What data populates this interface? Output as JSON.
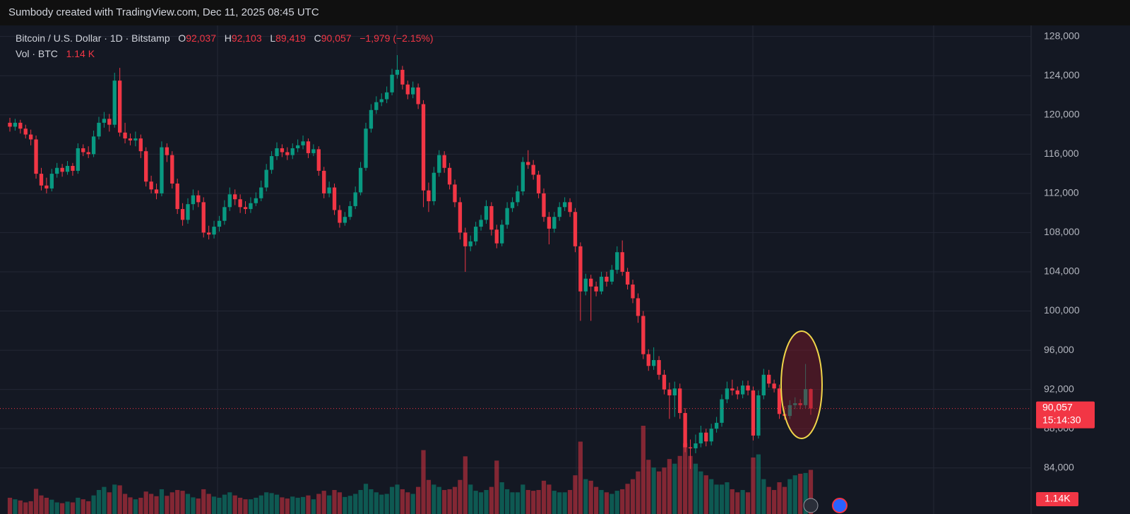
{
  "header": {
    "text": "Sumbody created with TradingView.com, Dec 11, 2025 08:45 UTC"
  },
  "legend": {
    "symbol": "Bitcoin / U.S. Dollar · 1D · Bitstamp",
    "o_key": "O",
    "o": "92,037",
    "h_key": "H",
    "h": "92,103",
    "l_key": "L",
    "l": "89,419",
    "c_key": "C",
    "c": "90,057",
    "change": "−1,979 (−2.15%)",
    "vol_key": "Vol · BTC",
    "vol": "1.14 K"
  },
  "chart_data": {
    "type": "candlestick",
    "up_color": "#089981",
    "down_color": "#f23645",
    "ylim": [
      79300,
      129200
    ],
    "yticks": [
      {
        "value": 84000,
        "label": "84,000"
      },
      {
        "value": 88000,
        "label": "88,000"
      },
      {
        "value": 92000,
        "label": "92,000"
      },
      {
        "value": 96000,
        "label": "96,000"
      },
      {
        "value": 100000,
        "label": "100,000"
      },
      {
        "value": 104000,
        "label": "104,000"
      },
      {
        "value": 108000,
        "label": "108,000"
      },
      {
        "value": 112000,
        "label": "112,000"
      },
      {
        "value": 116000,
        "label": "116,000"
      },
      {
        "value": 120000,
        "label": "120,000"
      },
      {
        "value": 124000,
        "label": "124,000"
      },
      {
        "value": 128000,
        "label": "128,000"
      }
    ],
    "grid": true,
    "last_price_label": "90,057",
    "countdown": "15:14:30",
    "last_volume_label": "1.14K",
    "candles": [
      [
        119200,
        119700,
        118300,
        118800
      ],
      [
        118800,
        119600,
        118400,
        119200
      ],
      [
        119200,
        119500,
        118100,
        118600
      ],
      [
        118600,
        119000,
        117600,
        118000
      ],
      [
        118000,
        118500,
        116900,
        117500
      ],
      [
        117500,
        117900,
        113500,
        114000
      ],
      [
        114000,
        114600,
        112300,
        112800
      ],
      [
        112800,
        113600,
        112000,
        112500
      ],
      [
        112500,
        114500,
        112200,
        114000
      ],
      [
        114000,
        115100,
        113600,
        114600
      ],
      [
        114600,
        115000,
        113700,
        114200
      ],
      [
        114200,
        115300,
        113900,
        114800
      ],
      [
        114800,
        115100,
        113800,
        114300
      ],
      [
        114300,
        117100,
        114000,
        116600
      ],
      [
        116600,
        117000,
        115800,
        116200
      ],
      [
        116200,
        116800,
        115600,
        116000
      ],
      [
        116000,
        118400,
        115700,
        117800
      ],
      [
        117800,
        119800,
        117500,
        119200
      ],
      [
        119200,
        120300,
        118700,
        119600
      ],
      [
        119600,
        120100,
        118300,
        119000
      ],
      [
        119000,
        124300,
        118700,
        123500
      ],
      [
        123500,
        124800,
        117800,
        118200
      ],
      [
        118200,
        119200,
        117100,
        117600
      ],
      [
        117600,
        118100,
        116900,
        117400
      ],
      [
        117400,
        118300,
        116800,
        117600
      ],
      [
        117600,
        118000,
        115600,
        116300
      ],
      [
        116300,
        116700,
        112700,
        113200
      ],
      [
        113200,
        113800,
        112000,
        112400
      ],
      [
        112400,
        113000,
        111400,
        112000
      ],
      [
        112000,
        117300,
        111700,
        116700
      ],
      [
        116700,
        117100,
        115200,
        115900
      ],
      [
        115900,
        116300,
        112500,
        113000
      ],
      [
        113000,
        113500,
        109900,
        110400
      ],
      [
        110400,
        111000,
        108700,
        109300
      ],
      [
        109300,
        111500,
        108900,
        110900
      ],
      [
        110900,
        112400,
        110300,
        111800
      ],
      [
        111800,
        112300,
        110600,
        111100
      ],
      [
        111100,
        111600,
        107500,
        108000
      ],
      [
        108000,
        108700,
        107300,
        107800
      ],
      [
        107800,
        109200,
        107400,
        108600
      ],
      [
        108600,
        109700,
        108100,
        109200
      ],
      [
        109200,
        111300,
        108800,
        110600
      ],
      [
        110600,
        112600,
        110200,
        111900
      ],
      [
        111900,
        112400,
        110800,
        111400
      ],
      [
        111400,
        111900,
        110000,
        110600
      ],
      [
        110600,
        111200,
        109900,
        110400
      ],
      [
        110400,
        111600,
        110000,
        111000
      ],
      [
        111000,
        112100,
        110700,
        111500
      ],
      [
        111500,
        113300,
        111200,
        112600
      ],
      [
        112600,
        115000,
        112200,
        114400
      ],
      [
        114400,
        116300,
        114000,
        115800
      ],
      [
        115800,
        117200,
        115400,
        116600
      ],
      [
        116600,
        117000,
        115700,
        116200
      ],
      [
        116200,
        116700,
        115400,
        115900
      ],
      [
        115900,
        117100,
        115500,
        116600
      ],
      [
        116600,
        117500,
        116200,
        116900
      ],
      [
        116900,
        117900,
        116500,
        117300
      ],
      [
        117300,
        117600,
        115600,
        116100
      ],
      [
        116100,
        117000,
        115800,
        116500
      ],
      [
        116500,
        116800,
        113800,
        114300
      ],
      [
        114300,
        114700,
        111500,
        112000
      ],
      [
        112000,
        113200,
        111600,
        112600
      ],
      [
        112600,
        113000,
        109800,
        110300
      ],
      [
        110300,
        110800,
        108500,
        109000
      ],
      [
        109000,
        110100,
        108700,
        109600
      ],
      [
        109600,
        111200,
        109300,
        110700
      ],
      [
        110700,
        112700,
        110400,
        112100
      ],
      [
        112100,
        115200,
        111800,
        114600
      ],
      [
        114600,
        119200,
        114300,
        118600
      ],
      [
        118600,
        121100,
        118200,
        120500
      ],
      [
        120500,
        121900,
        120100,
        121300
      ],
      [
        121300,
        122200,
        120900,
        121600
      ],
      [
        121600,
        122900,
        121200,
        122300
      ],
      [
        122300,
        124700,
        122000,
        124100
      ],
      [
        124100,
        126100,
        123700,
        124600
      ],
      [
        124600,
        125000,
        122600,
        123100
      ],
      [
        123100,
        123500,
        121600,
        122100
      ],
      [
        122100,
        123400,
        121700,
        122800
      ],
      [
        122800,
        123200,
        120600,
        121100
      ],
      [
        121100,
        121500,
        110600,
        112300
      ],
      [
        112300,
        113100,
        110100,
        111200
      ],
      [
        111200,
        114700,
        110800,
        114100
      ],
      [
        114100,
        116400,
        113700,
        115900
      ],
      [
        115900,
        116300,
        114100,
        114600
      ],
      [
        114600,
        115100,
        112400,
        112900
      ],
      [
        112900,
        113400,
        110600,
        111100
      ],
      [
        111100,
        111600,
        107300,
        108000
      ],
      [
        108000,
        108500,
        104000,
        106600
      ],
      [
        106600,
        107700,
        106100,
        107100
      ],
      [
        107100,
        109100,
        106700,
        108600
      ],
      [
        108600,
        109800,
        108200,
        109300
      ],
      [
        109300,
        111300,
        108900,
        110700
      ],
      [
        110700,
        111100,
        107700,
        108300
      ],
      [
        108300,
        108800,
        106400,
        106900
      ],
      [
        106900,
        109300,
        106600,
        108800
      ],
      [
        108800,
        111100,
        108400,
        110500
      ],
      [
        110500,
        111600,
        110100,
        111100
      ],
      [
        111100,
        112800,
        110700,
        112200
      ],
      [
        112200,
        115700,
        111800,
        115200
      ],
      [
        115200,
        116400,
        114500,
        114900
      ],
      [
        114900,
        115400,
        113400,
        113900
      ],
      [
        113900,
        114300,
        111500,
        112000
      ],
      [
        112000,
        112500,
        109100,
        109600
      ],
      [
        109600,
        110100,
        106800,
        108400
      ],
      [
        108400,
        110100,
        108000,
        109600
      ],
      [
        109600,
        111100,
        109200,
        110600
      ],
      [
        110600,
        111600,
        110200,
        111100
      ],
      [
        111100,
        111500,
        109600,
        110100
      ],
      [
        110100,
        110500,
        106000,
        106600
      ],
      [
        106600,
        107000,
        99000,
        102000
      ],
      [
        102000,
        103800,
        101600,
        103300
      ],
      [
        103300,
        103700,
        99000,
        102500
      ],
      [
        102500,
        103000,
        101500,
        102000
      ],
      [
        102000,
        104000,
        101700,
        103500
      ],
      [
        103500,
        104000,
        102500,
        103000
      ],
      [
        103000,
        104700,
        102700,
        104200
      ],
      [
        104200,
        106600,
        103800,
        106000
      ],
      [
        106000,
        107200,
        103600,
        104000
      ],
      [
        104000,
        104400,
        102200,
        102700
      ],
      [
        102700,
        103200,
        100800,
        101300
      ],
      [
        101300,
        101800,
        98800,
        99500
      ],
      [
        99500,
        100000,
        95100,
        95600
      ],
      [
        95600,
        96100,
        93900,
        94400
      ],
      [
        94400,
        96300,
        94000,
        95000
      ],
      [
        95000,
        95400,
        93000,
        93500
      ],
      [
        93500,
        94000,
        91500,
        92000
      ],
      [
        92000,
        92700,
        89000,
        91400
      ],
      [
        91400,
        92800,
        89200,
        92100
      ],
      [
        92100,
        92600,
        89000,
        89600
      ],
      [
        89600,
        90100,
        85600,
        86100
      ],
      [
        86100,
        86900,
        83900,
        86000
      ],
      [
        86000,
        87400,
        85500,
        86500
      ],
      [
        86500,
        88300,
        86100,
        87600
      ],
      [
        87600,
        88000,
        86200,
        86700
      ],
      [
        86700,
        88500,
        86300,
        88000
      ],
      [
        88000,
        89200,
        87600,
        88600
      ],
      [
        88600,
        91500,
        88200,
        91000
      ],
      [
        91000,
        92800,
        90600,
        92100
      ],
      [
        92100,
        93000,
        91400,
        91900
      ],
      [
        91900,
        92300,
        91000,
        91500
      ],
      [
        91500,
        92900,
        91100,
        92400
      ],
      [
        92400,
        92900,
        91400,
        91900
      ],
      [
        91900,
        92300,
        86800,
        87300
      ],
      [
        87300,
        91900,
        87000,
        91400
      ],
      [
        91400,
        94100,
        91000,
        93500
      ],
      [
        93500,
        94000,
        92200,
        92600
      ],
      [
        92600,
        93000,
        91700,
        92100
      ],
      [
        92100,
        92500,
        89000,
        89500
      ],
      [
        89500,
        90300,
        88900,
        89300
      ],
      [
        89300,
        90900,
        89000,
        90400
      ],
      [
        90400,
        91200,
        90000,
        90600
      ],
      [
        90600,
        91000,
        90000,
        90400
      ],
      [
        90400,
        94600,
        90100,
        92037
      ],
      [
        92037,
        92103,
        89419,
        90057
      ]
    ],
    "volumes": [
      420,
      380,
      350,
      300,
      330,
      650,
      480,
      420,
      370,
      300,
      280,
      320,
      300,
      420,
      380,
      330,
      480,
      620,
      700,
      560,
      760,
      740,
      520,
      430,
      380,
      420,
      580,
      520,
      460,
      640,
      470,
      560,
      620,
      600,
      520,
      430,
      400,
      640,
      520,
      450,
      420,
      500,
      560,
      480,
      420,
      380,
      380,
      420,
      480,
      560,
      540,
      500,
      430,
      400,
      450,
      420,
      440,
      480,
      380,
      520,
      600,
      480,
      620,
      560,
      440,
      470,
      520,
      620,
      780,
      640,
      560,
      500,
      520,
      700,
      760,
      640,
      560,
      520,
      700,
      1650,
      880,
      760,
      700,
      620,
      640,
      700,
      880,
      1490,
      760,
      600,
      560,
      620,
      700,
      1380,
      820,
      640,
      560,
      560,
      760,
      620,
      600,
      620,
      860,
      760,
      600,
      560,
      560,
      620,
      1000,
      1870,
      900,
      860,
      700,
      620,
      560,
      520,
      600,
      640,
      780,
      900,
      1100,
      2280,
      1400,
      1200,
      1100,
      1200,
      1420,
      1300,
      1500,
      1830,
      1500,
      1300,
      1100,
      1000,
      900,
      760,
      760,
      820,
      640,
      560,
      620,
      560,
      1460,
      1540,
      900,
      700,
      620,
      820,
      700,
      900,
      1000,
      1040,
      1060,
      1140
    ]
  }
}
